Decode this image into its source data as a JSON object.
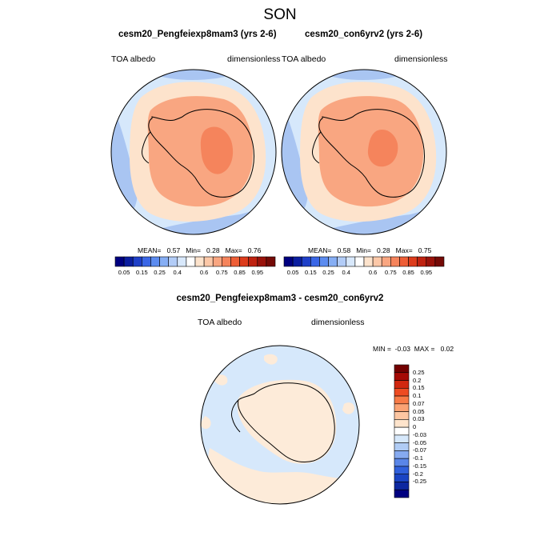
{
  "season": "SON",
  "panels": [
    {
      "title": "cesm20_Pengfeiexp8mam3 (yrs 2-6)",
      "variable": "TOA albedo",
      "units": "dimensionless",
      "stats": {
        "mean_label": "MEAN=",
        "mean": "0.57",
        "min_label": "Min=",
        "min": "0.28",
        "max_label": "Max=",
        "max": "0.76"
      }
    },
    {
      "title": "cesm20_con6yrv2 (yrs 2-6)",
      "variable": "TOA albedo",
      "units": "dimensionless",
      "stats": {
        "mean_label": "MEAN=",
        "mean": "0.58",
        "min_label": "Min=",
        "min": "0.28",
        "max_label": "Max=",
        "max": "0.75"
      }
    }
  ],
  "abs_colorbar": {
    "colors": [
      "#000080",
      "#0b1ea0",
      "#1f40c8",
      "#3a66e6",
      "#5c8cf0",
      "#86aef4",
      "#b2ccf7",
      "#d8e8fb",
      "#ffffff",
      "#fde3cc",
      "#fcc8a8",
      "#f9a681",
      "#f5845c",
      "#ee5e36",
      "#dd3c1c",
      "#bf2210",
      "#99120a",
      "#740a06"
    ],
    "labels": [
      "0.05",
      "0.15",
      "0.25",
      "0.4",
      "0.6",
      "0.75",
      "0.85",
      "0.95"
    ]
  },
  "diff_panel": {
    "title": "cesm20_Pengfeiexp8mam3 - cesm20_con6yrv2",
    "variable": "TOA albedo",
    "units": "dimensionless",
    "minmax": {
      "min_label": "MIN =",
      "min": "-0.03",
      "max_label": "MAX =",
      "max": "0.02"
    },
    "colorbar": {
      "colors": [
        "#730000",
        "#a50a05",
        "#d1270f",
        "#ee4b22",
        "#f87a46",
        "#fba374",
        "#fdc6a2",
        "#fee4cc",
        "#ffffff",
        "#d6e8fb",
        "#b0ccf5",
        "#86aaf0",
        "#5a86e8",
        "#3060dc",
        "#1a44c4",
        "#0d28a0",
        "#000080"
      ],
      "labels": [
        "0.25",
        "0.2",
        "0.15",
        "0.1",
        "0.07",
        "0.05",
        "0.03",
        "0",
        "-0.03",
        "-0.05",
        "-0.07",
        "-0.1",
        "-0.15",
        "-0.2",
        "-0.25"
      ]
    }
  },
  "colors": {
    "ocean_outer": "#d6e8fb",
    "ocean_blue": "#a9c5f2",
    "ice_band": "#fde3cc",
    "land_mid": "#f9a681",
    "land_high": "#f5845c",
    "diff_ocean": "#d6e8fb",
    "diff_pos": "#fdebd9"
  }
}
